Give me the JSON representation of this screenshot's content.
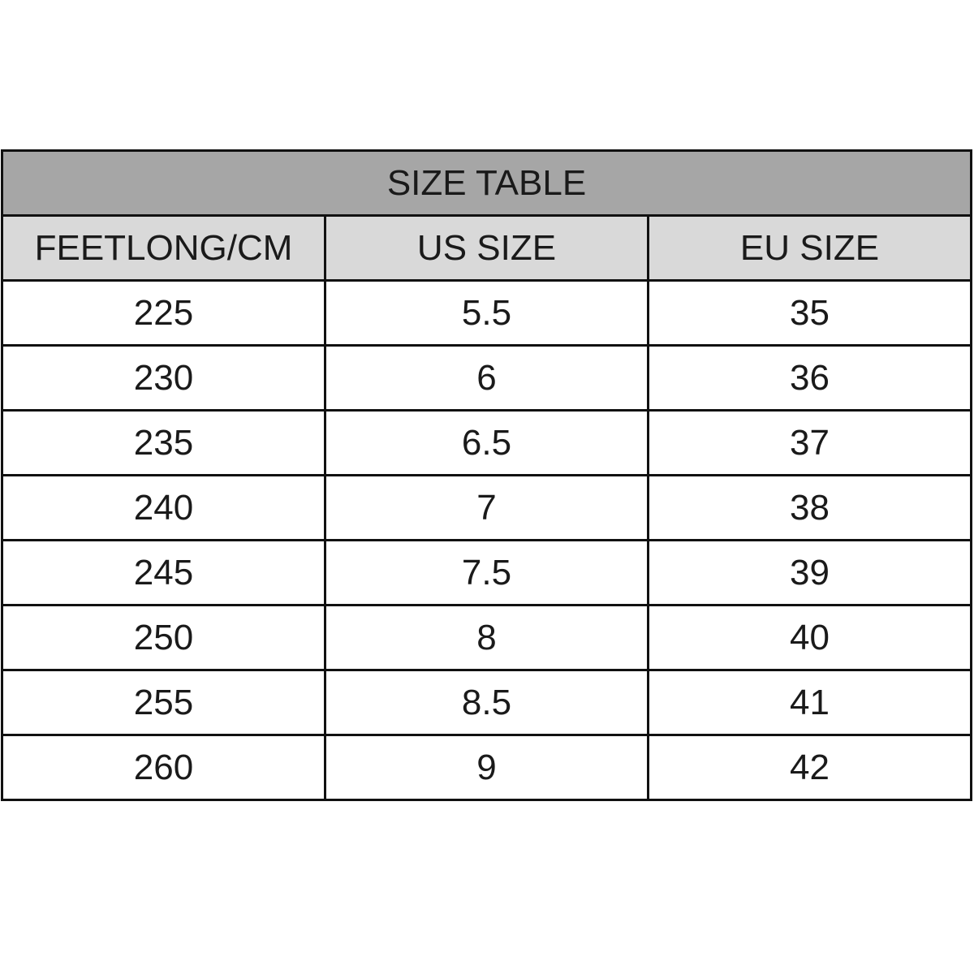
{
  "title": "SIZE TABLE",
  "columns": [
    "FEETLONG/CM",
    "US SIZE",
    "EU SIZE"
  ],
  "rows": [
    [
      "225",
      "5.5",
      "35"
    ],
    [
      "230",
      "6",
      "36"
    ],
    [
      "235",
      "6.5",
      "37"
    ],
    [
      "240",
      "7",
      "38"
    ],
    [
      "245",
      "7.5",
      "39"
    ],
    [
      "250",
      "8",
      "40"
    ],
    [
      "255",
      "8.5",
      "41"
    ],
    [
      "260",
      "9",
      "42"
    ]
  ],
  "colors": {
    "title_bg": "#a6a6a6",
    "header_bg": "#d9d9d9",
    "border": "#111111"
  }
}
